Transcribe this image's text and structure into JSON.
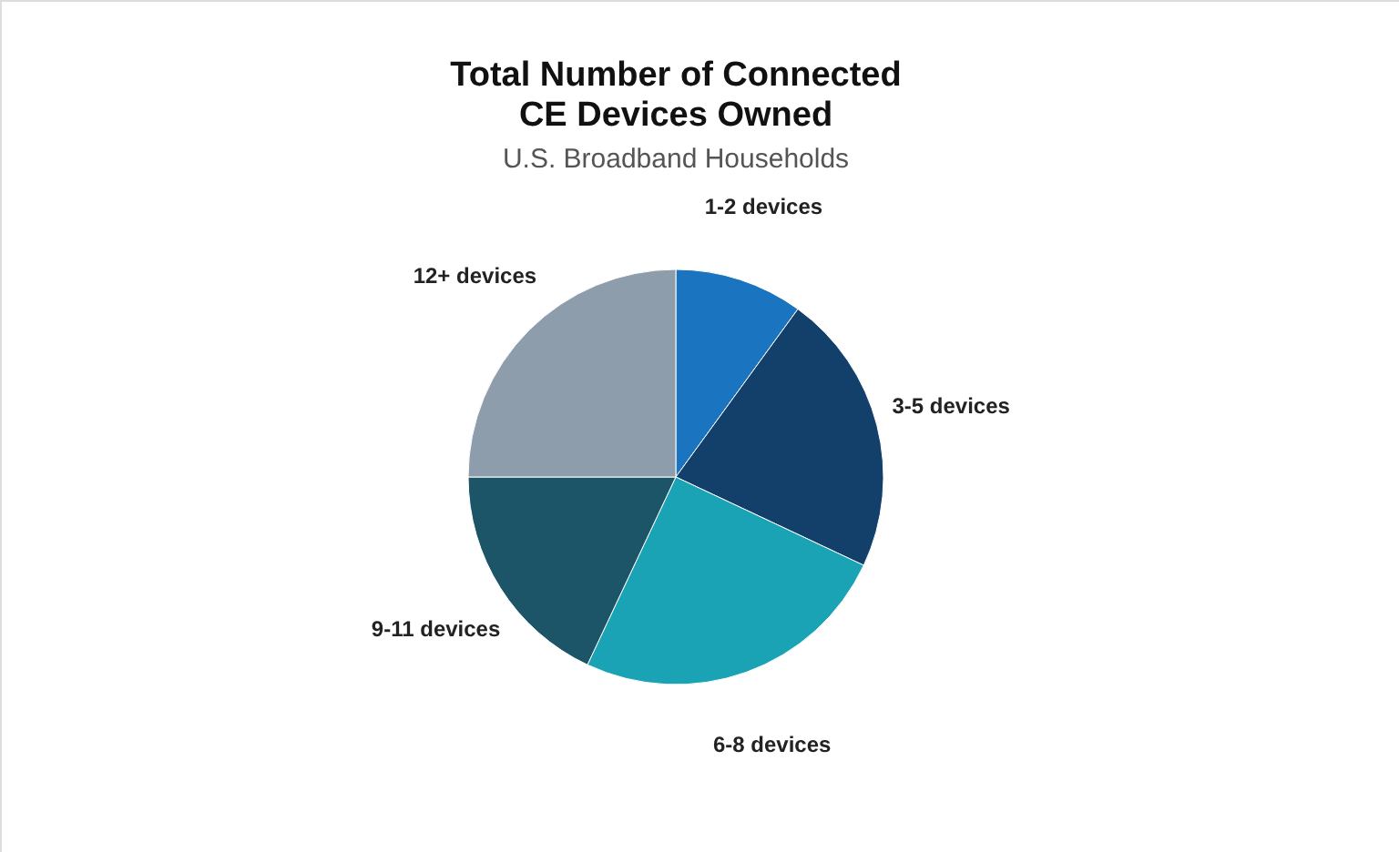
{
  "chart_data": {
    "type": "pie",
    "title": "Total Number of Connected\nCE Devices Owned",
    "subtitle": "U.S. Broadband Households",
    "categories": [
      "1-2 devices",
      "3-5 devices",
      "6-8 devices",
      "9-11 devices",
      "12+ devices"
    ],
    "values": [
      10,
      22,
      25,
      18,
      25
    ],
    "colors": [
      "#1b74bf",
      "#133f6b",
      "#1aa3b4",
      "#1b5567",
      "#8d9dab"
    ]
  }
}
